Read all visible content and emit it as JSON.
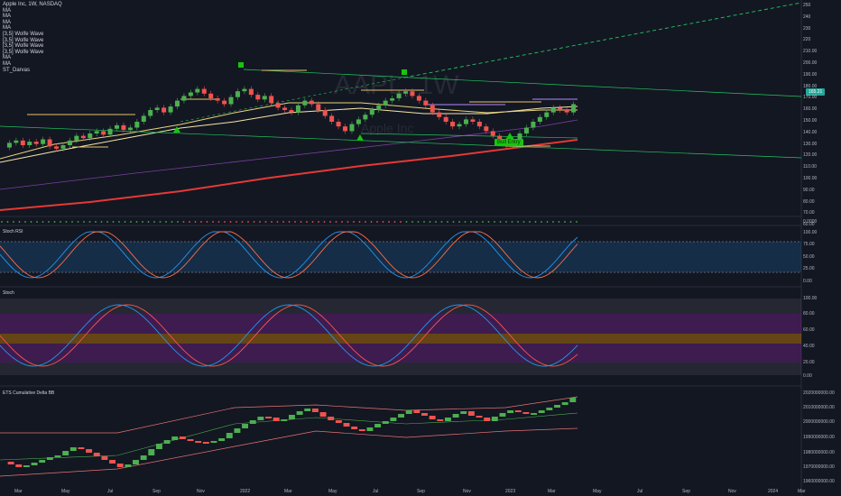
{
  "header": {
    "symbol_line": "Apple Inc, 1W, NASDAQ",
    "indicators": [
      "MA",
      "MA",
      "MA",
      "MA",
      "[3,5] Wolfe Wave",
      "[3,5] Wolfe Wave",
      "[3,5] Wolfe Wave",
      "[3,5] Wolfe Wave",
      "MA",
      "MA",
      "ST_Darvas"
    ]
  },
  "watermark": {
    "ticker": "AAPL, 1W",
    "name": "Apple Inc"
  },
  "price_badge": "165.21",
  "bull_entry": "Bull Entry",
  "price_axis": [
    "250",
    "240",
    "230",
    "220",
    "210.00",
    "200.00",
    "190.00",
    "180.00",
    "170.00",
    "160.00",
    "150.00",
    "140.00",
    "130.00",
    "120.00",
    "110.00",
    "100.00",
    "90.00",
    "80.00",
    "70.00",
    "60.00"
  ],
  "zero_label": "0.0000",
  "panels": {
    "stoch_rsi": {
      "title": "Stoch RSI",
      "axis": [
        "100.00",
        "75.00",
        "50.00",
        "25.00",
        "0.00"
      ]
    },
    "stoch": {
      "title": "Stoch",
      "axis": [
        "100.00",
        "80.00",
        "60.00",
        "40.00",
        "20.00",
        "0.00"
      ]
    },
    "delta": {
      "title": "ETS Cumulative Delta BB",
      "axis": [
        "2020000000.00",
        "2010000000.00",
        "2000000000.00",
        "1990000000.00",
        "1980000000.00",
        "1970000000.00",
        "1960000000.00"
      ]
    }
  },
  "time_axis": [
    "Mar",
    "May",
    "Jul",
    "Sep",
    "Nov",
    "2022",
    "Mar",
    "May",
    "Jul",
    "Sep",
    "Nov",
    "2023",
    "Mar",
    "May",
    "Jul",
    "Sep",
    "Nov",
    "2024",
    "Mar"
  ],
  "colors": {
    "up": "#26a69a",
    "up_bright": "#4caf50",
    "down": "#ef5350",
    "bg": "#131722",
    "ma_red": "#e53935",
    "ma_purple": "#7b3fa0",
    "ma_yellow": "#f5e6a8",
    "green_line": "#22c55e"
  }
}
